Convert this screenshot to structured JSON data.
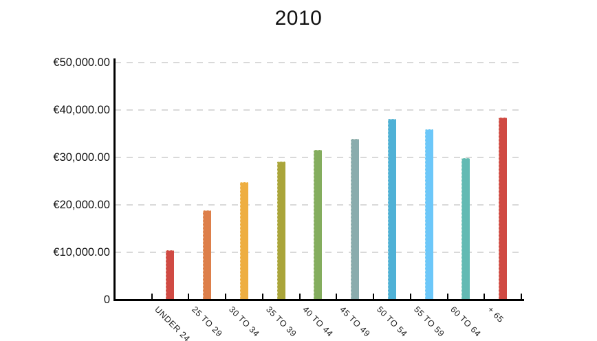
{
  "title": "2010",
  "chart_data": {
    "type": "bar",
    "title": "2010",
    "categories": [
      "UNDER 24",
      "25 TO 29",
      "30 TO 34",
      "35 TO 39",
      "40 TO 44",
      "45 TO 49",
      "50 TO 54",
      "55 TO 59",
      "60 TO 64",
      "+ 65"
    ],
    "values": [
      10400,
      18800,
      24800,
      29100,
      31600,
      33900,
      38100,
      35900,
      29800,
      38300
    ],
    "bar_colors": [
      "#d04a43",
      "#dd7f4a",
      "#eeae41",
      "#aaa53a",
      "#84ad5e",
      "#8aacad",
      "#4fb1d6",
      "#6cc7f9",
      "#63bab3",
      "#d04a43"
    ],
    "y_ticks": [
      {
        "value": 0,
        "label": "0"
      },
      {
        "value": 10000,
        "label": "€10,000.00"
      },
      {
        "value": 20000,
        "label": "€20,000.00"
      },
      {
        "value": 30000,
        "label": "€30,000.00"
      },
      {
        "value": 40000,
        "label": "€40,000.00"
      },
      {
        "value": 50000,
        "label": "€50,000.00"
      }
    ],
    "ylim": [
      0,
      50000
    ],
    "xlabel": "",
    "ylabel": "",
    "currency": "EUR",
    "grid": "horizontal-dashed",
    "legend": "none"
  },
  "colors": {
    "axis": "#000000",
    "grid": "#d9d9d9",
    "text": "#111111",
    "background": "#ffffff"
  }
}
